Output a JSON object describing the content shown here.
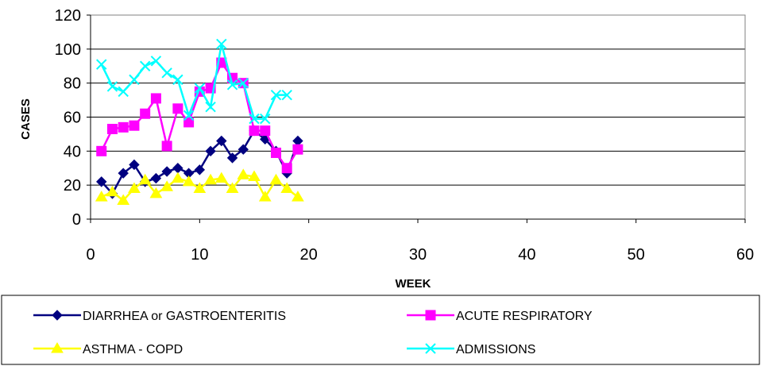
{
  "chart_data": {
    "type": "line",
    "xlabel": "WEEK",
    "ylabel": "CASES",
    "xlim": [
      0,
      60
    ],
    "ylim": [
      0,
      120
    ],
    "xticks": [
      "0",
      "10",
      "20",
      "30",
      "40",
      "50",
      "60"
    ],
    "yticks": [
      "0",
      "20",
      "40",
      "60",
      "80",
      "100",
      "120"
    ],
    "grid": "horizontal",
    "legend_position": "bottom",
    "series": [
      {
        "name": "DIARRHEA or GASTROENTERITIS",
        "color": "#000080",
        "marker": "diamond",
        "x": [
          1,
          2,
          3,
          4,
          5,
          6,
          7,
          8,
          9,
          10,
          11,
          12,
          13,
          14,
          15,
          16,
          17,
          18,
          19
        ],
        "values": [
          22,
          15,
          27,
          32,
          22,
          24,
          28,
          30,
          27,
          29,
          40,
          46,
          36,
          41,
          52,
          47,
          40,
          27,
          46
        ]
      },
      {
        "name": "ACUTE RESPIRATORY",
        "color": "#FF00FF",
        "marker": "square",
        "x": [
          1,
          2,
          3,
          4,
          5,
          6,
          7,
          8,
          9,
          10,
          11,
          12,
          13,
          14,
          15,
          16,
          17,
          18,
          19
        ],
        "values": [
          40,
          53,
          54,
          55,
          62,
          71,
          43,
          65,
          57,
          75,
          77,
          92,
          83,
          80,
          52,
          52,
          39,
          30,
          41
        ]
      },
      {
        "name": "ASTHMA - COPD",
        "color": "#FFFF00",
        "marker": "triangle",
        "x": [
          1,
          2,
          3,
          4,
          5,
          6,
          7,
          8,
          9,
          10,
          11,
          12,
          13,
          14,
          15,
          16,
          17,
          18,
          19
        ],
        "values": [
          13,
          16,
          11,
          18,
          23,
          15,
          19,
          24,
          22,
          18,
          23,
          24,
          18,
          26,
          25,
          13,
          23,
          18,
          13
        ]
      },
      {
        "name": "ADMISSIONS",
        "color": "#00FFFF",
        "marker": "x",
        "x": [
          1,
          2,
          3,
          4,
          5,
          6,
          7,
          8,
          9,
          10,
          11,
          12,
          13,
          14,
          15,
          16,
          17,
          18
        ],
        "values": [
          91,
          78,
          75,
          82,
          90,
          93,
          86,
          82,
          61,
          77,
          66,
          103,
          79,
          80,
          59,
          59,
          73,
          73
        ]
      }
    ]
  }
}
